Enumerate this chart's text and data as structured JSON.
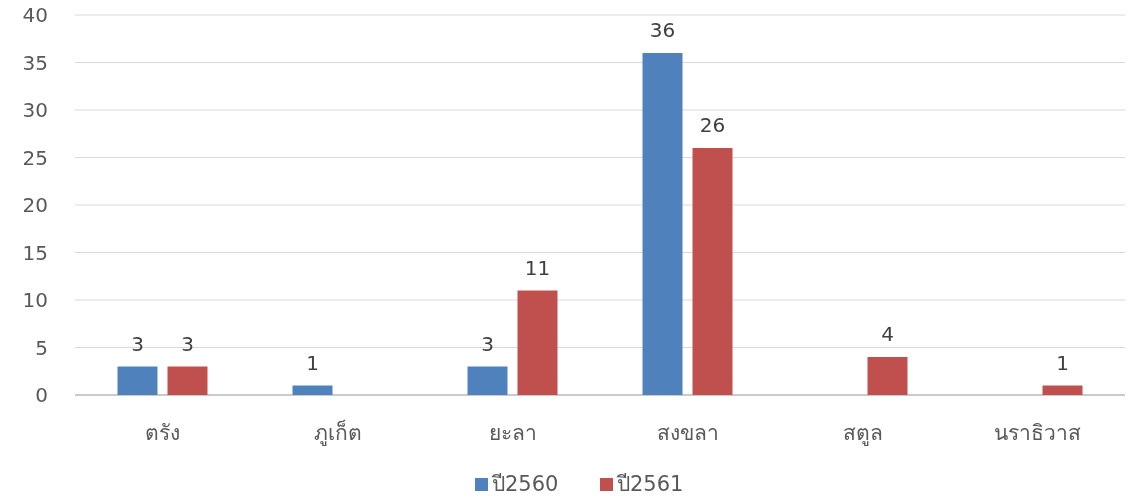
{
  "chart_data": {
    "type": "bar",
    "categories": [
      "ตรัง",
      "ภูเก็ต",
      "ยะลา",
      "สงขลา",
      "สตูล",
      "นราธิวาส"
    ],
    "series": [
      {
        "name": "ปี2560",
        "color": "#4f81bd",
        "values": [
          3,
          1,
          3,
          36,
          null,
          null
        ]
      },
      {
        "name": "ปี2561",
        "color": "#c0504d",
        "values": [
          3,
          null,
          11,
          26,
          4,
          1
        ]
      }
    ],
    "ylim": [
      0,
      40
    ],
    "yticks": [
      0,
      5,
      10,
      15,
      20,
      25,
      30,
      35,
      40
    ],
    "grid": "y",
    "legend": "bottom",
    "data_labels": true
  }
}
